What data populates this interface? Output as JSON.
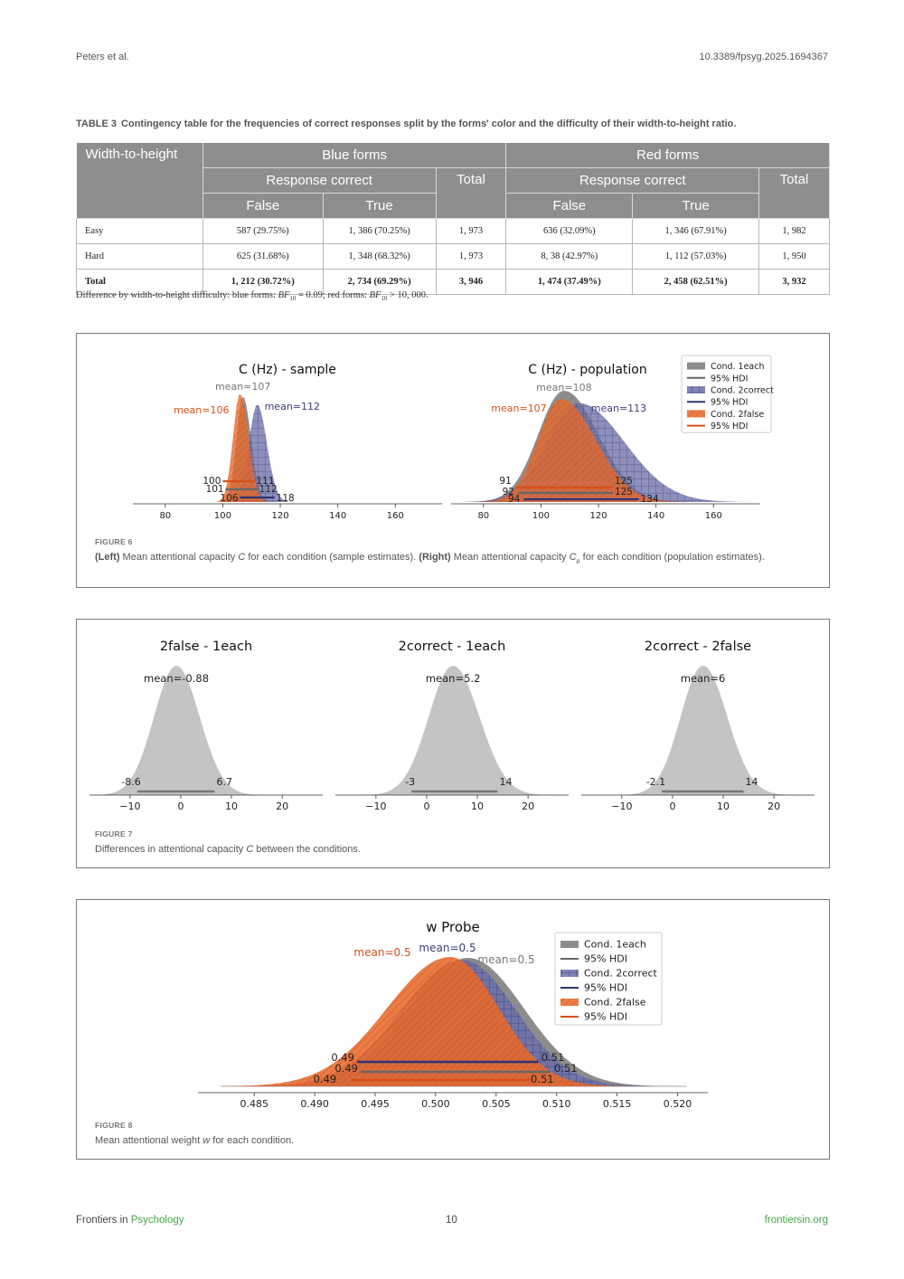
{
  "header": {
    "authors": "Peters et al.",
    "doi": "10.3389/fpsyg.2025.1694367"
  },
  "table3": {
    "label": "TABLE 3",
    "caption": "Contingency table for the frequencies of correct responses split by the forms' color and the difficulty of their width-to-height ratio.",
    "col_row_header": "Width-to-height",
    "group_blue": "Blue forms",
    "group_red": "Red forms",
    "response_correct": "Response correct",
    "total": "Total",
    "false": "False",
    "true": "True",
    "rows": [
      {
        "label": "Easy",
        "blue_false": "587 (29.75%)",
        "blue_true": "1, 386 (70.25%)",
        "blue_total": "1, 973",
        "red_false": "636 (32.09%)",
        "red_true": "1, 346 (67.91%)",
        "red_total": "1, 982"
      },
      {
        "label": "Hard",
        "blue_false": "625 (31.68%)",
        "blue_true": "1, 348 (68.32%)",
        "blue_total": "1, 973",
        "red_false": "8, 38 (42.97%)",
        "red_true": "1, 112 (57.03%)",
        "red_total": "1, 950"
      },
      {
        "label": "Total",
        "blue_false": "1, 212 (30.72%)",
        "blue_true": "2, 734 (69.29%)",
        "blue_total": "3, 946",
        "red_false": "1, 474 (37.49%)",
        "red_true": "2, 458 (62.51%)",
        "red_total": "3, 932"
      }
    ],
    "note_prefix": "Difference by width-to-height difficulty: blue forms: ",
    "note_bf": "BF",
    "note_sub": "10",
    "note_blue_val": " = 0.09; red forms: ",
    "note_red_val": " > 10, 000."
  },
  "colors": {
    "gray": "#8c8c8c",
    "blue": "#6b6fa8",
    "blue_line": "#2f3470",
    "orange": "#e86a2c",
    "orange_line": "#d8501a",
    "light_gray": "#c4c4c4"
  },
  "figure6": {
    "label": "FIGURE 6",
    "caption_left_b": "(Left)",
    "caption_left": " Mean attentional capacity ",
    "caption_c": "C",
    "caption_mid": " for each condition (sample estimates). ",
    "caption_right_b": "(Right)",
    "caption_right": " Mean attentional capacity ",
    "caption_cmu": "C",
    "caption_mu_sub": "μ",
    "caption_end": " for each condition (population estimates).",
    "legend": [
      "Cond. 1each",
      "95% HDI",
      "Cond. 2correct",
      "95% HDI",
      "Cond. 2false",
      "95% HDI"
    ]
  },
  "figure7": {
    "label": "FIGURE 7",
    "caption_a": "Differences in attentional capacity ",
    "caption_c": "C",
    "caption_b": " between the conditions."
  },
  "figure8": {
    "label": "FIGURE 8",
    "caption_a": "Mean attentional weight ",
    "caption_w": "w",
    "caption_b": " for each condition.",
    "legend": [
      "Cond. 1each",
      "95% HDI",
      "Cond. 2correct",
      "95% HDI",
      "Cond. 2false",
      "95% HDI"
    ]
  },
  "chart_data": [
    {
      "type": "area",
      "title": "C (Hz) - sample",
      "xlim": [
        70,
        175
      ],
      "x_ticks": [
        "80",
        "100",
        "120",
        "140",
        "160"
      ],
      "series": [
        {
          "condition": "1each",
          "mean": 107,
          "mean_label": "mean=107",
          "hdi": [
            101,
            112
          ]
        },
        {
          "condition": "2correct",
          "mean": 112,
          "mean_label": "mean=112",
          "hdi": [
            106,
            118
          ]
        },
        {
          "condition": "2false",
          "mean": 106,
          "mean_label": "mean=106",
          "hdi": [
            100,
            111
          ]
        }
      ],
      "hdi_labels": [
        "100",
        "101",
        "106",
        "111",
        "112",
        "118"
      ]
    },
    {
      "type": "area",
      "title": "C (Hz) - population",
      "xlim": [
        70,
        175
      ],
      "x_ticks": [
        "80",
        "100",
        "120",
        "140",
        "160"
      ],
      "series": [
        {
          "condition": "1each",
          "mean": 108,
          "mean_label": "mean=108",
          "hdi": [
            92,
            125
          ]
        },
        {
          "condition": "2correct",
          "mean": 113,
          "mean_label": "mean=113",
          "hdi": [
            94,
            134
          ]
        },
        {
          "condition": "2false",
          "mean": 107,
          "mean_label": "mean=107",
          "hdi": [
            91,
            125
          ]
        }
      ],
      "hdi_labels": [
        "91",
        "92",
        "94",
        "125",
        "125",
        "134"
      ]
    },
    {
      "type": "area",
      "title": "2false - 1each",
      "xlim": [
        -18,
        28
      ],
      "x_ticks": [
        "−10",
        "0",
        "10",
        "20"
      ],
      "mean": -0.88,
      "mean_label": "mean=-0.88",
      "hdi": [
        -8.6,
        6.7
      ],
      "hdi_labels": [
        "-8.6",
        "6.7"
      ]
    },
    {
      "type": "area",
      "title": "2correct - 1each",
      "xlim": [
        -18,
        28
      ],
      "x_ticks": [
        "−10",
        "0",
        "10",
        "20"
      ],
      "mean": 5.2,
      "mean_label": "mean=5.2",
      "hdi": [
        -3,
        14
      ],
      "hdi_labels": [
        "-3",
        "14"
      ]
    },
    {
      "type": "area",
      "title": "2correct - 2false",
      "xlim": [
        -18,
        28
      ],
      "x_ticks": [
        "−10",
        "0",
        "10",
        "20"
      ],
      "mean": 6,
      "mean_label": "mean=6",
      "hdi": [
        -2.1,
        14
      ],
      "hdi_labels": [
        "-2.1",
        "14"
      ]
    },
    {
      "type": "area",
      "title": "w Probe",
      "xlim": [
        0.4805,
        0.5225
      ],
      "x_ticks": [
        "0.485",
        "0.490",
        "0.495",
        "0.500",
        "0.505",
        "0.510",
        "0.515",
        "0.520"
      ],
      "series": [
        {
          "condition": "1each",
          "mean": 0.5,
          "mean_label": "mean=0.5",
          "hdi": [
            0.49,
            0.51
          ]
        },
        {
          "condition": "2correct",
          "mean": 0.5,
          "mean_label": "mean=0.5",
          "hdi": [
            0.49,
            0.51
          ]
        },
        {
          "condition": "2false",
          "mean": 0.5,
          "mean_label": "mean=0.5",
          "hdi": [
            0.49,
            0.51
          ]
        }
      ],
      "hdi_labels": [
        "0.49",
        "0.49",
        "0.49",
        "0.51",
        "0.51",
        "0.51"
      ]
    }
  ],
  "footer": {
    "journal_prefix": "Frontiers in ",
    "journal_name": "Psychology",
    "page": "10",
    "site": "frontiersin.org"
  }
}
